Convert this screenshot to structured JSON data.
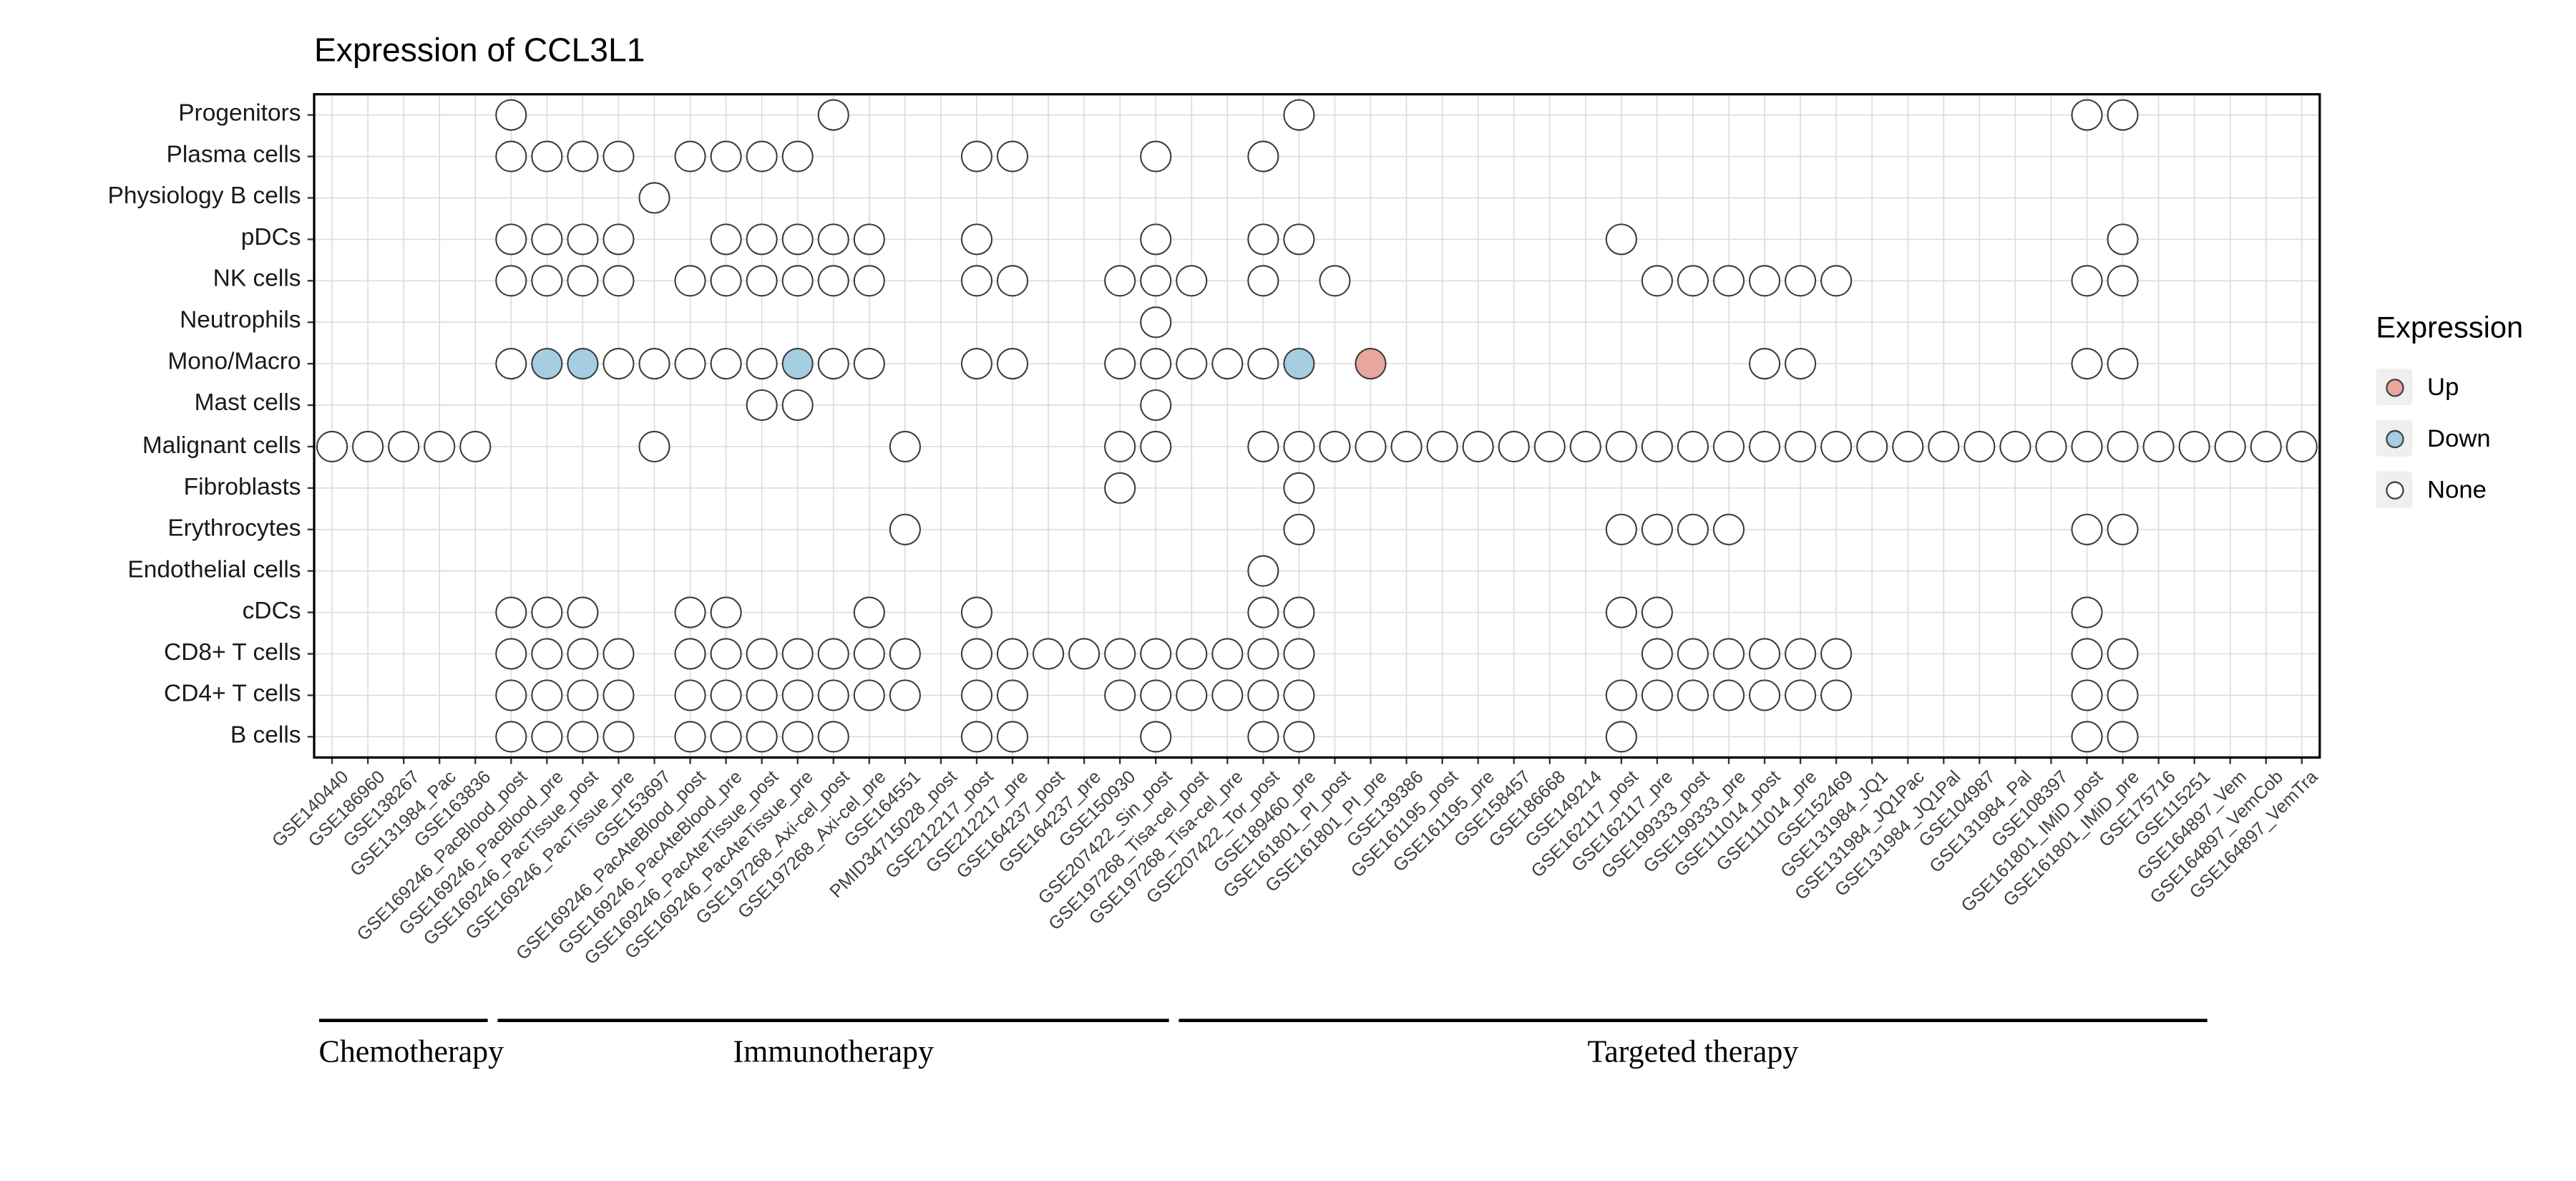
{
  "chart_data": {
    "type": "dot-matrix",
    "title": "Expression of CCL3L1",
    "xlabel": "",
    "ylabel": "",
    "grid": true,
    "legend_position": "right",
    "rows": [
      "Progenitors",
      "Plasma cells",
      "Physiology B cells",
      "pDCs",
      "NK cells",
      "Neutrophils",
      "Mono/Macro",
      "Mast cells",
      "Malignant cells",
      "Fibroblasts",
      "Erythrocytes",
      "Endothelial cells",
      "cDCs",
      "CD8+ T cells",
      "CD4+ T cells",
      "B cells"
    ],
    "columns": [
      "GSE140440",
      "GSE186960",
      "GSE138267",
      "GSE131984_Pac",
      "GSE163836",
      "GSE169246_PacBlood_post",
      "GSE169246_PacBlood_pre",
      "GSE169246_PacTissue_post",
      "GSE169246_PacTissue_pre",
      "GSE153697",
      "GSE169246_PacAteBlood_post",
      "GSE169246_PacAteBlood_pre",
      "GSE169246_PacAteTissue_post",
      "GSE169246_PacAteTissue_pre",
      "GSE197268_Axi-cel_post",
      "GSE197268_Axi-cel_pre",
      "GSE164551",
      "PMID34715028_post",
      "GSE212217_post",
      "GSE212217_pre",
      "GSE164237_post",
      "GSE164237_pre",
      "GSE150930",
      "GSE207422_Sin_post",
      "GSE197268_Tisa-cel_post",
      "GSE197268_Tisa-cel_pre",
      "GSE207422_Tor_post",
      "GSE189460_pre",
      "GSE161801_PI_post",
      "GSE161801_PI_pre",
      "GSE139386",
      "GSE161195_post",
      "GSE161195_pre",
      "GSE158457",
      "GSE186668",
      "GSE149214",
      "GSE162117_post",
      "GSE162117_pre",
      "GSE199333_post",
      "GSE199333_pre",
      "GSE111014_post",
      "GSE111014_pre",
      "GSE152469",
      "GSE131984_JQ1",
      "GSE131984_JQ1Pac",
      "GSE131984_JQ1Pal",
      "GSE104987",
      "GSE131984_Pal",
      "GSE108397",
      "GSE161801_IMiD_post",
      "GSE161801_IMiD_pre",
      "GSE175716",
      "GSE115251",
      "GSE164897_Vem",
      "GSE164897_VemCob",
      "GSE164897_VemTra"
    ],
    "groups": [
      {
        "label": "Chemotherapy",
        "col_start": 1,
        "col_end": 5
      },
      {
        "label": "Immunotherapy",
        "col_start": 6,
        "col_end": 24
      },
      {
        "label": "Targeted therapy",
        "col_start": 25,
        "col_end": 53
      }
    ],
    "legend": {
      "title": "Expression",
      "items": [
        {
          "label": "Up",
          "value": "up",
          "color": "#E9A59E"
        },
        {
          "label": "Down",
          "value": "down",
          "color": "#A6CEE3"
        },
        {
          "label": "None",
          "value": "none",
          "color": "#FFFFFF"
        }
      ]
    },
    "style": {
      "panel_bg": "#FFFFFF",
      "grid_color": "#DBDBDB",
      "dot_stroke": "#3C3C3C",
      "panel_border": "#000000",
      "tick_color": "#333333"
    },
    "cells": [
      {
        "row": "Progenitors",
        "none": [
          6,
          15,
          28,
          50,
          51
        ],
        "down": [],
        "up": []
      },
      {
        "row": "Plasma cells",
        "none": [
          6,
          7,
          8,
          9,
          11,
          12,
          13,
          14,
          19,
          20,
          24,
          27
        ],
        "down": [],
        "up": []
      },
      {
        "row": "Physiology B cells",
        "none": [
          10
        ],
        "down": [],
        "up": []
      },
      {
        "row": "pDCs",
        "none": [
          6,
          7,
          8,
          9,
          12,
          13,
          14,
          15,
          16,
          19,
          24,
          27,
          28,
          37,
          51
        ],
        "down": [],
        "up": []
      },
      {
        "row": "NK cells",
        "none": [
          6,
          7,
          8,
          9,
          11,
          12,
          13,
          14,
          15,
          16,
          19,
          20,
          23,
          24,
          25,
          27,
          29,
          38,
          39,
          40,
          41,
          42,
          43,
          50,
          51
        ],
        "down": [],
        "up": []
      },
      {
        "row": "Neutrophils",
        "none": [
          24
        ],
        "down": [],
        "up": []
      },
      {
        "row": "Mono/Macro",
        "none": [
          6,
          9,
          10,
          11,
          12,
          13,
          15,
          16,
          19,
          20,
          23,
          24,
          25,
          26,
          27,
          41,
          42,
          50,
          51
        ],
        "down": [
          7,
          8,
          14,
          28
        ],
        "up": [
          30
        ]
      },
      {
        "row": "Mast cells",
        "none": [
          13,
          14,
          24
        ],
        "down": [],
        "up": []
      },
      {
        "row": "Malignant cells",
        "none": [
          1,
          2,
          3,
          4,
          5,
          10,
          17,
          23,
          24,
          27,
          28,
          29,
          30,
          31,
          32,
          33,
          34,
          35,
          36,
          37,
          38,
          39,
          40,
          41,
          42,
          43,
          44,
          45,
          46,
          47,
          48,
          49,
          50,
          51,
          52,
          53,
          54,
          55,
          56
        ],
        "down": [],
        "up": []
      },
      {
        "row": "Fibroblasts",
        "none": [
          23,
          28
        ],
        "down": [],
        "up": []
      },
      {
        "row": "Erythrocytes",
        "none": [
          17,
          28,
          37,
          38,
          39,
          40,
          50,
          51
        ],
        "down": [],
        "up": []
      },
      {
        "row": "Endothelial cells",
        "none": [
          27
        ],
        "down": [],
        "up": []
      },
      {
        "row": "cDCs",
        "none": [
          6,
          7,
          8,
          11,
          12,
          16,
          19,
          27,
          28,
          37,
          38,
          50
        ],
        "down": [],
        "up": []
      },
      {
        "row": "CD8+ T cells",
        "none": [
          6,
          7,
          8,
          9,
          11,
          12,
          13,
          14,
          15,
          16,
          17,
          19,
          20,
          21,
          22,
          23,
          24,
          25,
          26,
          27,
          28,
          38,
          39,
          40,
          41,
          42,
          43,
          50,
          51
        ],
        "down": [],
        "up": []
      },
      {
        "row": "CD4+ T cells",
        "none": [
          6,
          7,
          8,
          9,
          11,
          12,
          13,
          14,
          15,
          16,
          17,
          19,
          20,
          23,
          24,
          25,
          26,
          27,
          28,
          37,
          38,
          39,
          40,
          41,
          42,
          43,
          50,
          51
        ],
        "down": [],
        "up": []
      },
      {
        "row": "B cells",
        "none": [
          6,
          7,
          8,
          9,
          11,
          12,
          13,
          14,
          15,
          19,
          20,
          24,
          27,
          28,
          37,
          50,
          51
        ],
        "down": [],
        "up": []
      }
    ]
  }
}
